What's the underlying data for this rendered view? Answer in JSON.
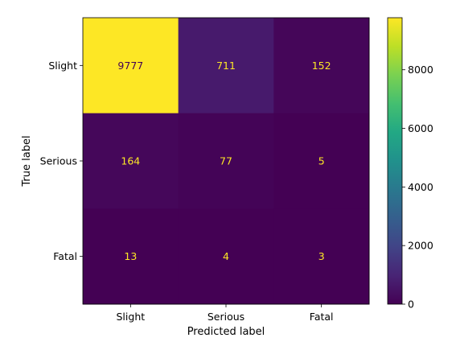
{
  "chart_data": {
    "type": "heatmap",
    "title": "",
    "xlabel": "Predicted label",
    "ylabel": "True label",
    "x_categories": [
      "Slight",
      "Serious",
      "Fatal"
    ],
    "y_categories": [
      "Slight",
      "Serious",
      "Fatal"
    ],
    "matrix": [
      [
        9777,
        711,
        152
      ],
      [
        164,
        77,
        5
      ],
      [
        13,
        4,
        3
      ]
    ],
    "colormap": "viridis",
    "colorbar": {
      "range": [
        0,
        9777
      ],
      "ticks": [
        0,
        2000,
        4000,
        6000,
        8000
      ]
    },
    "colors": {
      "text_on_dark": "#fde725",
      "text_on_light": "#440154"
    }
  }
}
